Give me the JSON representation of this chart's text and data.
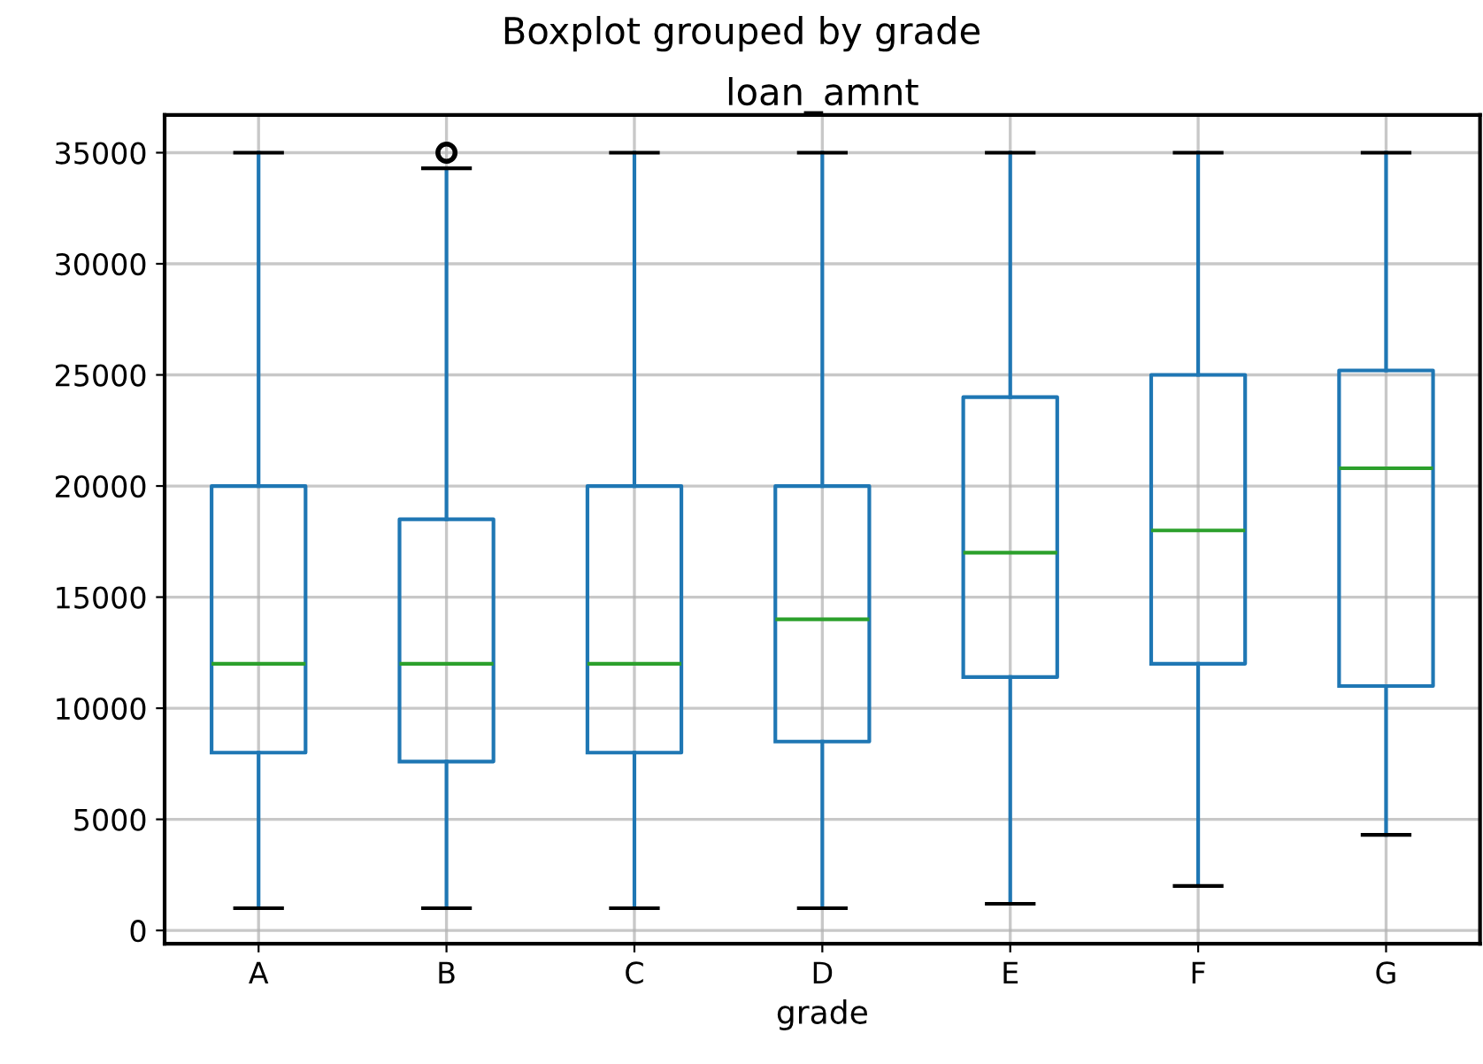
{
  "chart_data": {
    "type": "box",
    "title": "Boxplot grouped by grade",
    "subtitle": "loan_amnt",
    "xlabel": "grade",
    "categories": [
      "A",
      "B",
      "C",
      "D",
      "E",
      "F",
      "G"
    ],
    "color": "#1f77b4",
    "boxes": [
      {
        "low": 1000,
        "q1": 8000,
        "median": 12000,
        "q3": 20000,
        "high": 35000
      },
      {
        "low": 1000,
        "q1": 7600,
        "median": 12000,
        "q3": 18500,
        "high": 34300,
        "outliers": [
          35000
        ]
      },
      {
        "low": 1000,
        "q1": 8000,
        "median": 12000,
        "q3": 20000,
        "high": 35000
      },
      {
        "low": 1000,
        "q1": 8500,
        "median": 14000,
        "q3": 20000,
        "high": 35000
      },
      {
        "low": 1200,
        "q1": 11400,
        "median": 17000,
        "q3": 24000,
        "high": 35000
      },
      {
        "low": 2000,
        "q1": 12000,
        "median": 18000,
        "q3": 25000,
        "high": 35000
      },
      {
        "low": 4300,
        "q1": 11000,
        "median": 20800,
        "q3": 25200,
        "high": 35000
      }
    ],
    "ylim": [
      -600,
      36700
    ],
    "yticks": [
      0,
      5000,
      10000,
      15000,
      20000,
      25000,
      30000,
      35000
    ],
    "grid": true
  }
}
